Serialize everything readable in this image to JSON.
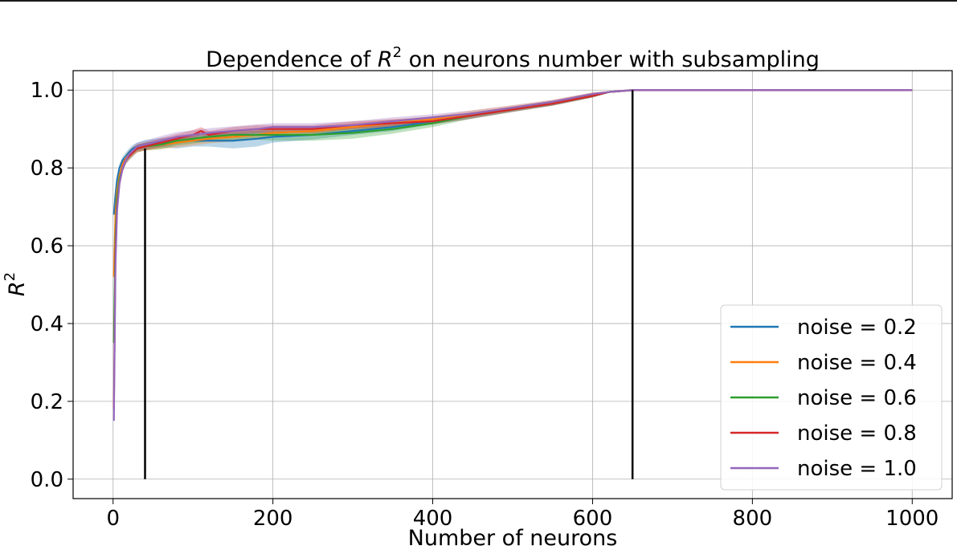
{
  "chart_data": {
    "type": "line",
    "title": "Dependence of R² on neurons number with subsampling",
    "title_parts": {
      "prefix": "Dependence of ",
      "var": "R",
      "sup": "2",
      "suffix": " on neurons number with subsampling"
    },
    "xlabel": "Number of neurons",
    "ylabel": {
      "var": "R",
      "sup": "2"
    },
    "xlim": [
      -50,
      1050
    ],
    "ylim": [
      -0.05,
      1.05
    ],
    "xticks": [
      0,
      200,
      400,
      600,
      800,
      1000
    ],
    "xtick_labels": [
      "0",
      "200",
      "400",
      "600",
      "800",
      "1000"
    ],
    "yticks": [
      0.0,
      0.2,
      0.4,
      0.6,
      0.8,
      1.0
    ],
    "ytick_labels": [
      "0.0",
      "0.2",
      "0.4",
      "0.6",
      "0.8",
      "1.0"
    ],
    "grid": true,
    "legend_position": "bottom-right",
    "vertical_lines": [
      {
        "x": 40,
        "y_range": [
          0.0,
          0.85
        ],
        "color": "#000000"
      },
      {
        "x": 650,
        "y_range": [
          0.0,
          1.0
        ],
        "color": "#000000"
      }
    ],
    "series": [
      {
        "name": "noise = 0.2",
        "color": "#1f77b4",
        "x": [
          1,
          3,
          5,
          8,
          12,
          16,
          20,
          25,
          30,
          40,
          60,
          80,
          100,
          120,
          150,
          180,
          200,
          250,
          300,
          350,
          400,
          450,
          500,
          550,
          600,
          620,
          650,
          700,
          800,
          900,
          1000
        ],
        "y": [
          0.68,
          0.73,
          0.77,
          0.8,
          0.82,
          0.83,
          0.84,
          0.85,
          0.855,
          0.86,
          0.865,
          0.865,
          0.87,
          0.87,
          0.87,
          0.875,
          0.88,
          0.885,
          0.895,
          0.905,
          0.92,
          0.935,
          0.95,
          0.965,
          0.985,
          0.995,
          1.0,
          1.0,
          1.0,
          1.0,
          1.0
        ],
        "band": [
          0.012,
          0.012,
          0.012,
          0.01,
          0.01,
          0.01,
          0.01,
          0.01,
          0.01,
          0.012,
          0.012,
          0.015,
          0.015,
          0.015,
          0.02,
          0.02,
          0.015,
          0.012,
          0.01,
          0.01,
          0.008,
          0.008,
          0.006,
          0.005,
          0.004,
          0.002,
          0,
          0,
          0,
          0,
          0
        ]
      },
      {
        "name": "noise = 0.4",
        "color": "#ff7f0e",
        "x": [
          1,
          3,
          5,
          8,
          12,
          16,
          20,
          25,
          30,
          40,
          60,
          80,
          100,
          120,
          150,
          180,
          200,
          250,
          300,
          350,
          400,
          450,
          500,
          550,
          600,
          620,
          650,
          700,
          800,
          900,
          1000
        ],
        "y": [
          0.52,
          0.68,
          0.74,
          0.78,
          0.81,
          0.825,
          0.835,
          0.845,
          0.85,
          0.855,
          0.86,
          0.865,
          0.87,
          0.875,
          0.88,
          0.885,
          0.89,
          0.895,
          0.905,
          0.915,
          0.925,
          0.94,
          0.955,
          0.97,
          0.99,
          0.995,
          1.0,
          1.0,
          1.0,
          1.0,
          1.0
        ],
        "band": [
          0.015,
          0.012,
          0.012,
          0.01,
          0.01,
          0.01,
          0.01,
          0.01,
          0.01,
          0.01,
          0.012,
          0.012,
          0.012,
          0.012,
          0.012,
          0.012,
          0.01,
          0.01,
          0.01,
          0.01,
          0.008,
          0.008,
          0.006,
          0.005,
          0.004,
          0.002,
          0,
          0,
          0,
          0,
          0
        ]
      },
      {
        "name": "noise = 0.6",
        "color": "#2ca02c",
        "x": [
          1,
          3,
          5,
          8,
          12,
          16,
          20,
          25,
          30,
          40,
          60,
          80,
          100,
          120,
          150,
          180,
          200,
          250,
          300,
          350,
          400,
          450,
          500,
          550,
          600,
          620,
          650,
          700,
          800,
          900,
          1000
        ],
        "y": [
          0.35,
          0.62,
          0.72,
          0.77,
          0.8,
          0.82,
          0.83,
          0.84,
          0.85,
          0.855,
          0.86,
          0.87,
          0.875,
          0.88,
          0.885,
          0.885,
          0.885,
          0.885,
          0.89,
          0.9,
          0.915,
          0.935,
          0.95,
          0.965,
          0.985,
          0.995,
          1.0,
          1.0,
          1.0,
          1.0,
          1.0
        ],
        "band": [
          0.02,
          0.015,
          0.012,
          0.01,
          0.01,
          0.01,
          0.01,
          0.01,
          0.01,
          0.01,
          0.012,
          0.012,
          0.012,
          0.012,
          0.012,
          0.012,
          0.015,
          0.015,
          0.015,
          0.012,
          0.01,
          0.008,
          0.006,
          0.005,
          0.004,
          0.002,
          0,
          0,
          0,
          0,
          0
        ]
      },
      {
        "name": "noise = 0.8",
        "color": "#d62728",
        "x": [
          1,
          3,
          5,
          8,
          12,
          16,
          20,
          25,
          30,
          40,
          60,
          80,
          100,
          110,
          120,
          150,
          180,
          200,
          250,
          300,
          350,
          400,
          450,
          500,
          550,
          600,
          620,
          650,
          700,
          800,
          900,
          1000
        ],
        "y": [
          0.18,
          0.58,
          0.7,
          0.76,
          0.8,
          0.82,
          0.83,
          0.84,
          0.85,
          0.855,
          0.865,
          0.875,
          0.885,
          0.895,
          0.885,
          0.895,
          0.9,
          0.9,
          0.9,
          0.91,
          0.915,
          0.92,
          0.935,
          0.95,
          0.965,
          0.985,
          0.995,
          1.0,
          1.0,
          1.0,
          1.0,
          1.0
        ],
        "band": [
          0.02,
          0.015,
          0.012,
          0.01,
          0.01,
          0.01,
          0.01,
          0.01,
          0.01,
          0.01,
          0.012,
          0.012,
          0.012,
          0.01,
          0.01,
          0.01,
          0.01,
          0.01,
          0.01,
          0.01,
          0.01,
          0.008,
          0.008,
          0.006,
          0.005,
          0.004,
          0.002,
          0,
          0,
          0,
          0,
          0
        ]
      },
      {
        "name": "noise = 1.0",
        "color": "#9467bd",
        "x": [
          1,
          3,
          5,
          8,
          12,
          16,
          20,
          25,
          30,
          40,
          60,
          80,
          100,
          120,
          150,
          180,
          200,
          250,
          300,
          350,
          400,
          450,
          500,
          550,
          600,
          620,
          650,
          700,
          800,
          900,
          1000
        ],
        "y": [
          0.15,
          0.55,
          0.69,
          0.76,
          0.8,
          0.82,
          0.835,
          0.845,
          0.855,
          0.86,
          0.87,
          0.88,
          0.885,
          0.89,
          0.895,
          0.9,
          0.905,
          0.905,
          0.91,
          0.92,
          0.93,
          0.94,
          0.955,
          0.97,
          0.99,
          0.995,
          1.0,
          1.0,
          1.0,
          1.0,
          1.0
        ],
        "band": [
          0.02,
          0.015,
          0.012,
          0.01,
          0.01,
          0.01,
          0.01,
          0.01,
          0.01,
          0.01,
          0.012,
          0.012,
          0.012,
          0.012,
          0.012,
          0.012,
          0.01,
          0.01,
          0.01,
          0.01,
          0.008,
          0.008,
          0.006,
          0.005,
          0.004,
          0.002,
          0,
          0,
          0,
          0,
          0
        ]
      }
    ]
  }
}
